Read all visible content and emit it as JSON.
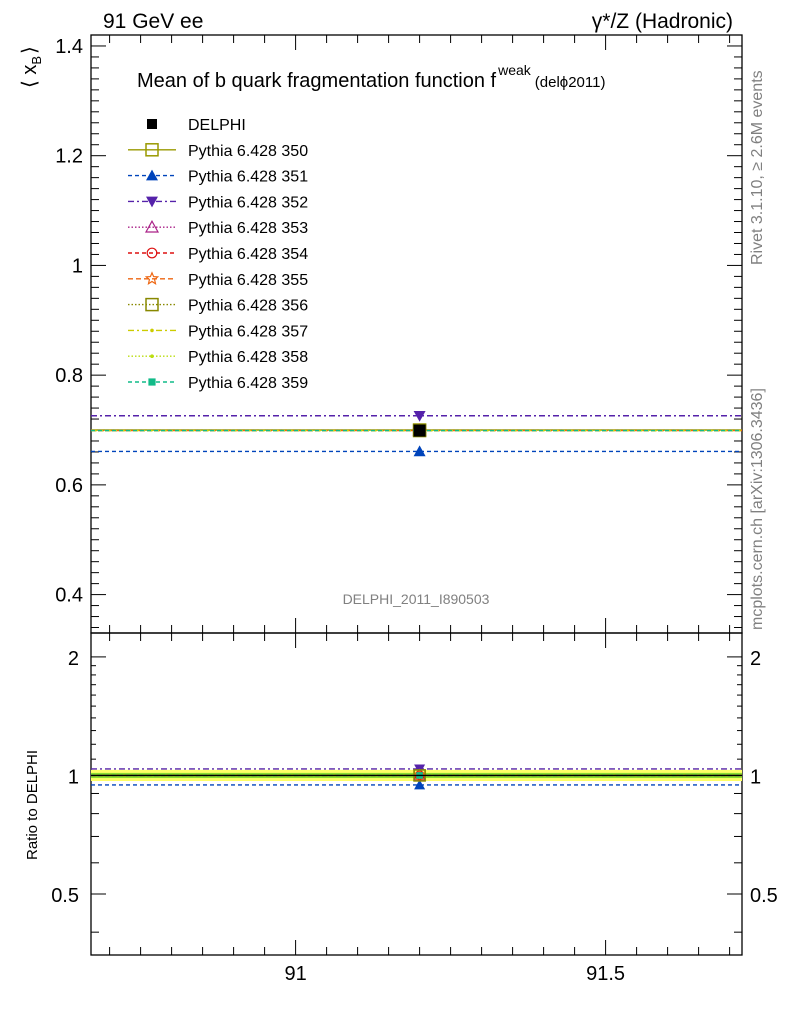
{
  "header": {
    "left": "91 GeV ee",
    "right": "γ*/Z (Hadronic)"
  },
  "side": {
    "rivet": "Rivet 3.1.10, ≥ 2.6M events",
    "mcplots": "mcplots.cern.ch [arXiv:1306.3436]"
  },
  "chart_data": [
    {
      "type": "scatter",
      "title": "Mean of b quark fragmentation function f",
      "title_sup": "weak",
      "title_suffix": "(delϕ2011)",
      "ylabel_main": "⟨ x",
      "ylabel_sub": "B",
      "ylabel_end": "⟩",
      "analysis_label": "DELPHI_2011_I890503",
      "xlim": [
        90.67,
        91.72
      ],
      "ylim": [
        0.33,
        1.42
      ],
      "yticks": [
        0.4,
        0.6,
        0.8,
        1,
        1.2,
        1.4
      ],
      "ytick_labels": [
        "0.4",
        "0.6",
        "0.8",
        "1",
        "1.2",
        "1.4"
      ],
      "x_point": 91.2,
      "x_range": [
        90.67,
        91.72
      ],
      "legend_position": "top-left",
      "series": [
        {
          "name": "DELPHI",
          "y": 0.699,
          "color": "#000000",
          "marker": "filled-square",
          "dash": "none",
          "data": true
        },
        {
          "name": "Pythia 6.428 350",
          "y": 0.7,
          "color": "#999900",
          "marker": "open-square",
          "dash": "solid"
        },
        {
          "name": "Pythia 6.428 351",
          "y": 0.661,
          "color": "#0044bb",
          "marker": "filled-triangle-up",
          "dash": "4,3"
        },
        {
          "name": "Pythia 6.428 352",
          "y": 0.726,
          "color": "#5522aa",
          "marker": "filled-triangle-down",
          "dash": "6,3,2,3"
        },
        {
          "name": "Pythia 6.428 353",
          "y": 0.699,
          "color": "#aa2288",
          "marker": "open-triangle-up",
          "dash": "1.5,2"
        },
        {
          "name": "Pythia 6.428 354",
          "y": 0.699,
          "color": "#dd1111",
          "marker": "open-circle",
          "dash": "4,3"
        },
        {
          "name": "Pythia 6.428 355",
          "y": 0.699,
          "color": "#ee6611",
          "marker": "open-star",
          "dash": "5,3"
        },
        {
          "name": "Pythia 6.428 356",
          "y": 0.699,
          "color": "#888800",
          "marker": "open-square",
          "dash": "1.5,2"
        },
        {
          "name": "Pythia 6.428 357",
          "y": 0.699,
          "color": "#cccc00",
          "marker": "small-dot",
          "dash": "6,3,2,3"
        },
        {
          "name": "Pythia 6.428 358",
          "y": 0.699,
          "color": "#bbdd11",
          "marker": "small-dot",
          "dash": "1.5,2"
        },
        {
          "name": "Pythia 6.428 359",
          "y": 0.699,
          "color": "#11bb88",
          "marker": "filled-square-small",
          "dash": "4,3"
        }
      ]
    },
    {
      "type": "scatter",
      "ylabel": "Ratio to DELPHI",
      "xlim": [
        90.67,
        91.72
      ],
      "ylim": [
        0.35,
        2.3
      ],
      "yticks": [
        0.5,
        1,
        2
      ],
      "ytick_labels": [
        "0.5",
        "1",
        "2"
      ],
      "xticks": [
        91,
        91.5
      ],
      "xtick_labels": [
        "91",
        "91.5"
      ],
      "band": [
        0.985,
        1.015
      ],
      "band_colors": [
        "#ffff66",
        "#88dd33"
      ],
      "ratios": [
        1.0,
        1.001,
        0.946,
        1.039,
        1.0,
        1.0,
        1.0,
        1.0,
        1.0,
        1.0,
        1.0
      ]
    }
  ]
}
